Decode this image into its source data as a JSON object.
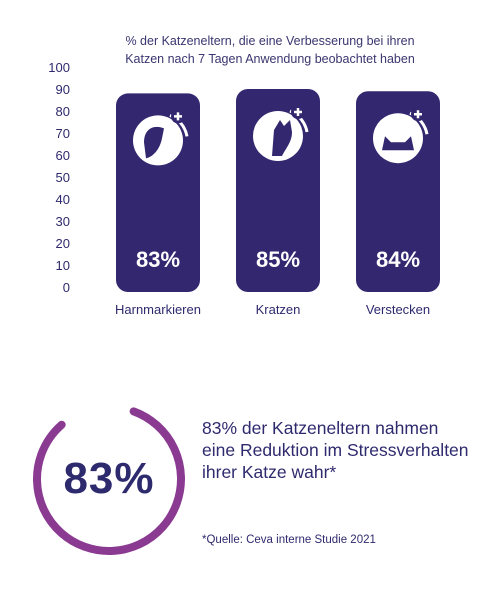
{
  "chart_data": {
    "type": "bar",
    "title": "% der Katzeneltern, die eine Verbesserung bei ihren Katzen nach 7 Tagen Anwendung beobachtet haben",
    "title_lines": [
      "% der Katzeneltern, die eine Verbesserung bei ihren",
      "Katzen nach 7 Tagen Anwendung beobachtet haben"
    ],
    "categories": [
      "Harnmarkieren",
      "Kratzen",
      "Verstecken"
    ],
    "values": [
      83,
      85,
      84
    ],
    "value_labels": [
      "83%",
      "85%",
      "84%"
    ],
    "icons": [
      "cat-marking-icon",
      "cat-scratching-icon",
      "cat-hiding-icon"
    ],
    "ylim": [
      0,
      100
    ],
    "yticks": [
      0,
      10,
      20,
      30,
      40,
      50,
      60,
      70,
      80,
      90,
      100
    ],
    "grid": false,
    "xlabel": "",
    "ylabel": "",
    "bar_color": "#33276f"
  },
  "summary": {
    "percent": 83,
    "percent_label": "83%",
    "statement": "83% der Katzeneltern nahmen eine Reduktion im Stressverhalten ihrer Katze wahr*",
    "source": "*Quelle: Ceva interne Studie 2021",
    "ring_color": "#8a3a91"
  }
}
